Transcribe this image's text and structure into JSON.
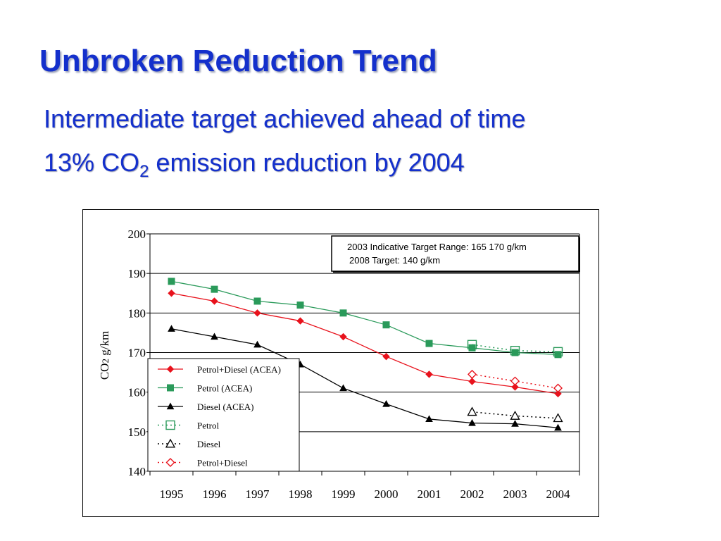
{
  "slide": {
    "title": "Unbroken Reduction Trend",
    "subtitle1": "Intermediate target achieved ahead of time",
    "subtitle2_pre": "13% CO",
    "subtitle2_sub": "2",
    "subtitle2_post": " emission reduction by 2004",
    "title_color": "#1430cc"
  },
  "chart_data": {
    "type": "line",
    "title": "",
    "xlabel": "",
    "ylabel_main": "CO",
    "ylabel_sub": "2",
    "ylabel_rest": " g/km",
    "x": [
      "1995",
      "1996",
      "1997",
      "1998",
      "1999",
      "2000",
      "2001",
      "2002",
      "2003",
      "2004"
    ],
    "ylim": [
      140,
      200
    ],
    "yticks": [
      140,
      150,
      160,
      170,
      180,
      190,
      200
    ],
    "grid": true,
    "annotation": {
      "line1": "2003 Indicative Target Range: 165 170 g/km",
      "line2": "2008 Target: 140 g/km"
    },
    "legend_position": "bottom-left",
    "series": [
      {
        "name": "Petrol+Diesel (ACEA)",
        "color": "#e8121c",
        "style": "solid",
        "marker": "diamond-filled",
        "x": [
          "1995",
          "1996",
          "1997",
          "1998",
          "1999",
          "2000",
          "2001",
          "2002",
          "2003",
          "2004"
        ],
        "values": [
          185,
          183,
          180,
          178,
          174,
          169,
          164.5,
          162.7,
          161.3,
          159.6
        ]
      },
      {
        "name": "Petrol (ACEA)",
        "color": "#2a9a5a",
        "style": "solid",
        "marker": "square-filled",
        "x": [
          "1995",
          "1996",
          "1997",
          "1998",
          "1999",
          "2000",
          "2001",
          "2002",
          "2003",
          "2004"
        ],
        "values": [
          188,
          186,
          183,
          182,
          180,
          177,
          172.3,
          171.2,
          170,
          169.5
        ]
      },
      {
        "name": "Diesel (ACEA)",
        "color": "#000000",
        "style": "solid",
        "marker": "triangle-filled",
        "x": [
          "1995",
          "1996",
          "1997",
          "1998",
          "1999",
          "2000",
          "2001",
          "2002",
          "2003",
          "2004"
        ],
        "values": [
          176,
          174,
          172,
          167,
          161,
          157,
          153.2,
          152.2,
          152,
          151
        ]
      },
      {
        "name": "Petrol",
        "color": "#2a9a5a",
        "style": "dotted",
        "marker": "square-open",
        "x": [
          "2002",
          "2003",
          "2004"
        ],
        "values": [
          172,
          170.5,
          170.2
        ]
      },
      {
        "name": "Diesel",
        "color": "#000000",
        "style": "dotted",
        "marker": "triangle-open",
        "x": [
          "2002",
          "2003",
          "2004"
        ],
        "values": [
          155,
          154,
          153.4
        ]
      },
      {
        "name": "Petrol+Diesel",
        "color": "#e8121c",
        "style": "dotted",
        "marker": "diamond-open",
        "x": [
          "2002",
          "2003",
          "2004"
        ],
        "values": [
          164.5,
          162.8,
          161
        ]
      }
    ]
  }
}
